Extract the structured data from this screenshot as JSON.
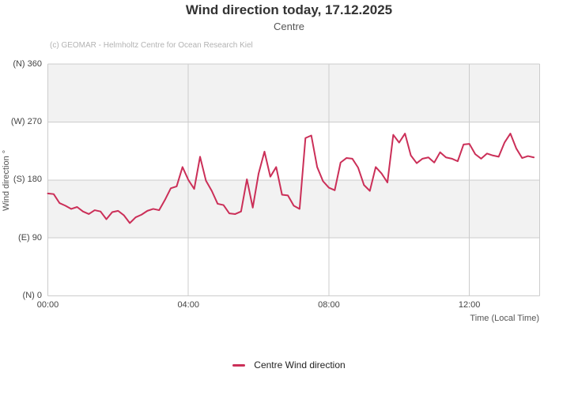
{
  "chart_data": {
    "type": "line",
    "title": "Wind direction today, 17.12.2025",
    "subtitle": "Centre",
    "attribution": "(c) GEOMAR - Helmholtz Centre for Ocean Research Kiel",
    "grid": true,
    "grid_color": "#cccccc",
    "band_color": "#f2f2f2",
    "plot_background": "#ffffff",
    "x_axis": {
      "label": "Time (Local Time)",
      "range_hours": [
        0,
        14
      ],
      "ticks": [
        {
          "hour": 0,
          "label": "00:00"
        },
        {
          "hour": 4,
          "label": "04:00"
        },
        {
          "hour": 8,
          "label": "08:00"
        },
        {
          "hour": 12,
          "label": "12:00"
        }
      ]
    },
    "y_axis": {
      "label": "Wind direction °",
      "range_deg": [
        0,
        360
      ],
      "band_ranges_deg": [
        [
          270,
          360
        ],
        [
          90,
          180
        ]
      ],
      "ticks": [
        {
          "deg": 360,
          "label": "(N) 360"
        },
        {
          "deg": 270,
          "label": "(W) 270"
        },
        {
          "deg": 180,
          "label": "(S) 180"
        },
        {
          "deg": 90,
          "label": "(E) 90"
        },
        {
          "deg": 0,
          "label": "(N) 0"
        }
      ]
    },
    "legend_position": "bottom",
    "series": [
      {
        "name": "Centre Wind direction",
        "color": "#cb2f58",
        "start_time": "00:00",
        "interval_minutes": 10,
        "values_deg": [
          159,
          158,
          144,
          140,
          135,
          138,
          131,
          127,
          133,
          131,
          119,
          130,
          132,
          125,
          113,
          122,
          126,
          132,
          135,
          133,
          149,
          167,
          170,
          200,
          180,
          166,
          216,
          179,
          163,
          143,
          141,
          128,
          127,
          131,
          181,
          137,
          190,
          224,
          185,
          200,
          157,
          156,
          140,
          135,
          245,
          249,
          200,
          178,
          168,
          164,
          207,
          214,
          213,
          199,
          172,
          163,
          200,
          190,
          176,
          250,
          238,
          252,
          218,
          206,
          213,
          215,
          207,
          223,
          215,
          213,
          209,
          235,
          236,
          220,
          213,
          221,
          218,
          216,
          238,
          252,
          229,
          214,
          217,
          215
        ]
      }
    ]
  }
}
